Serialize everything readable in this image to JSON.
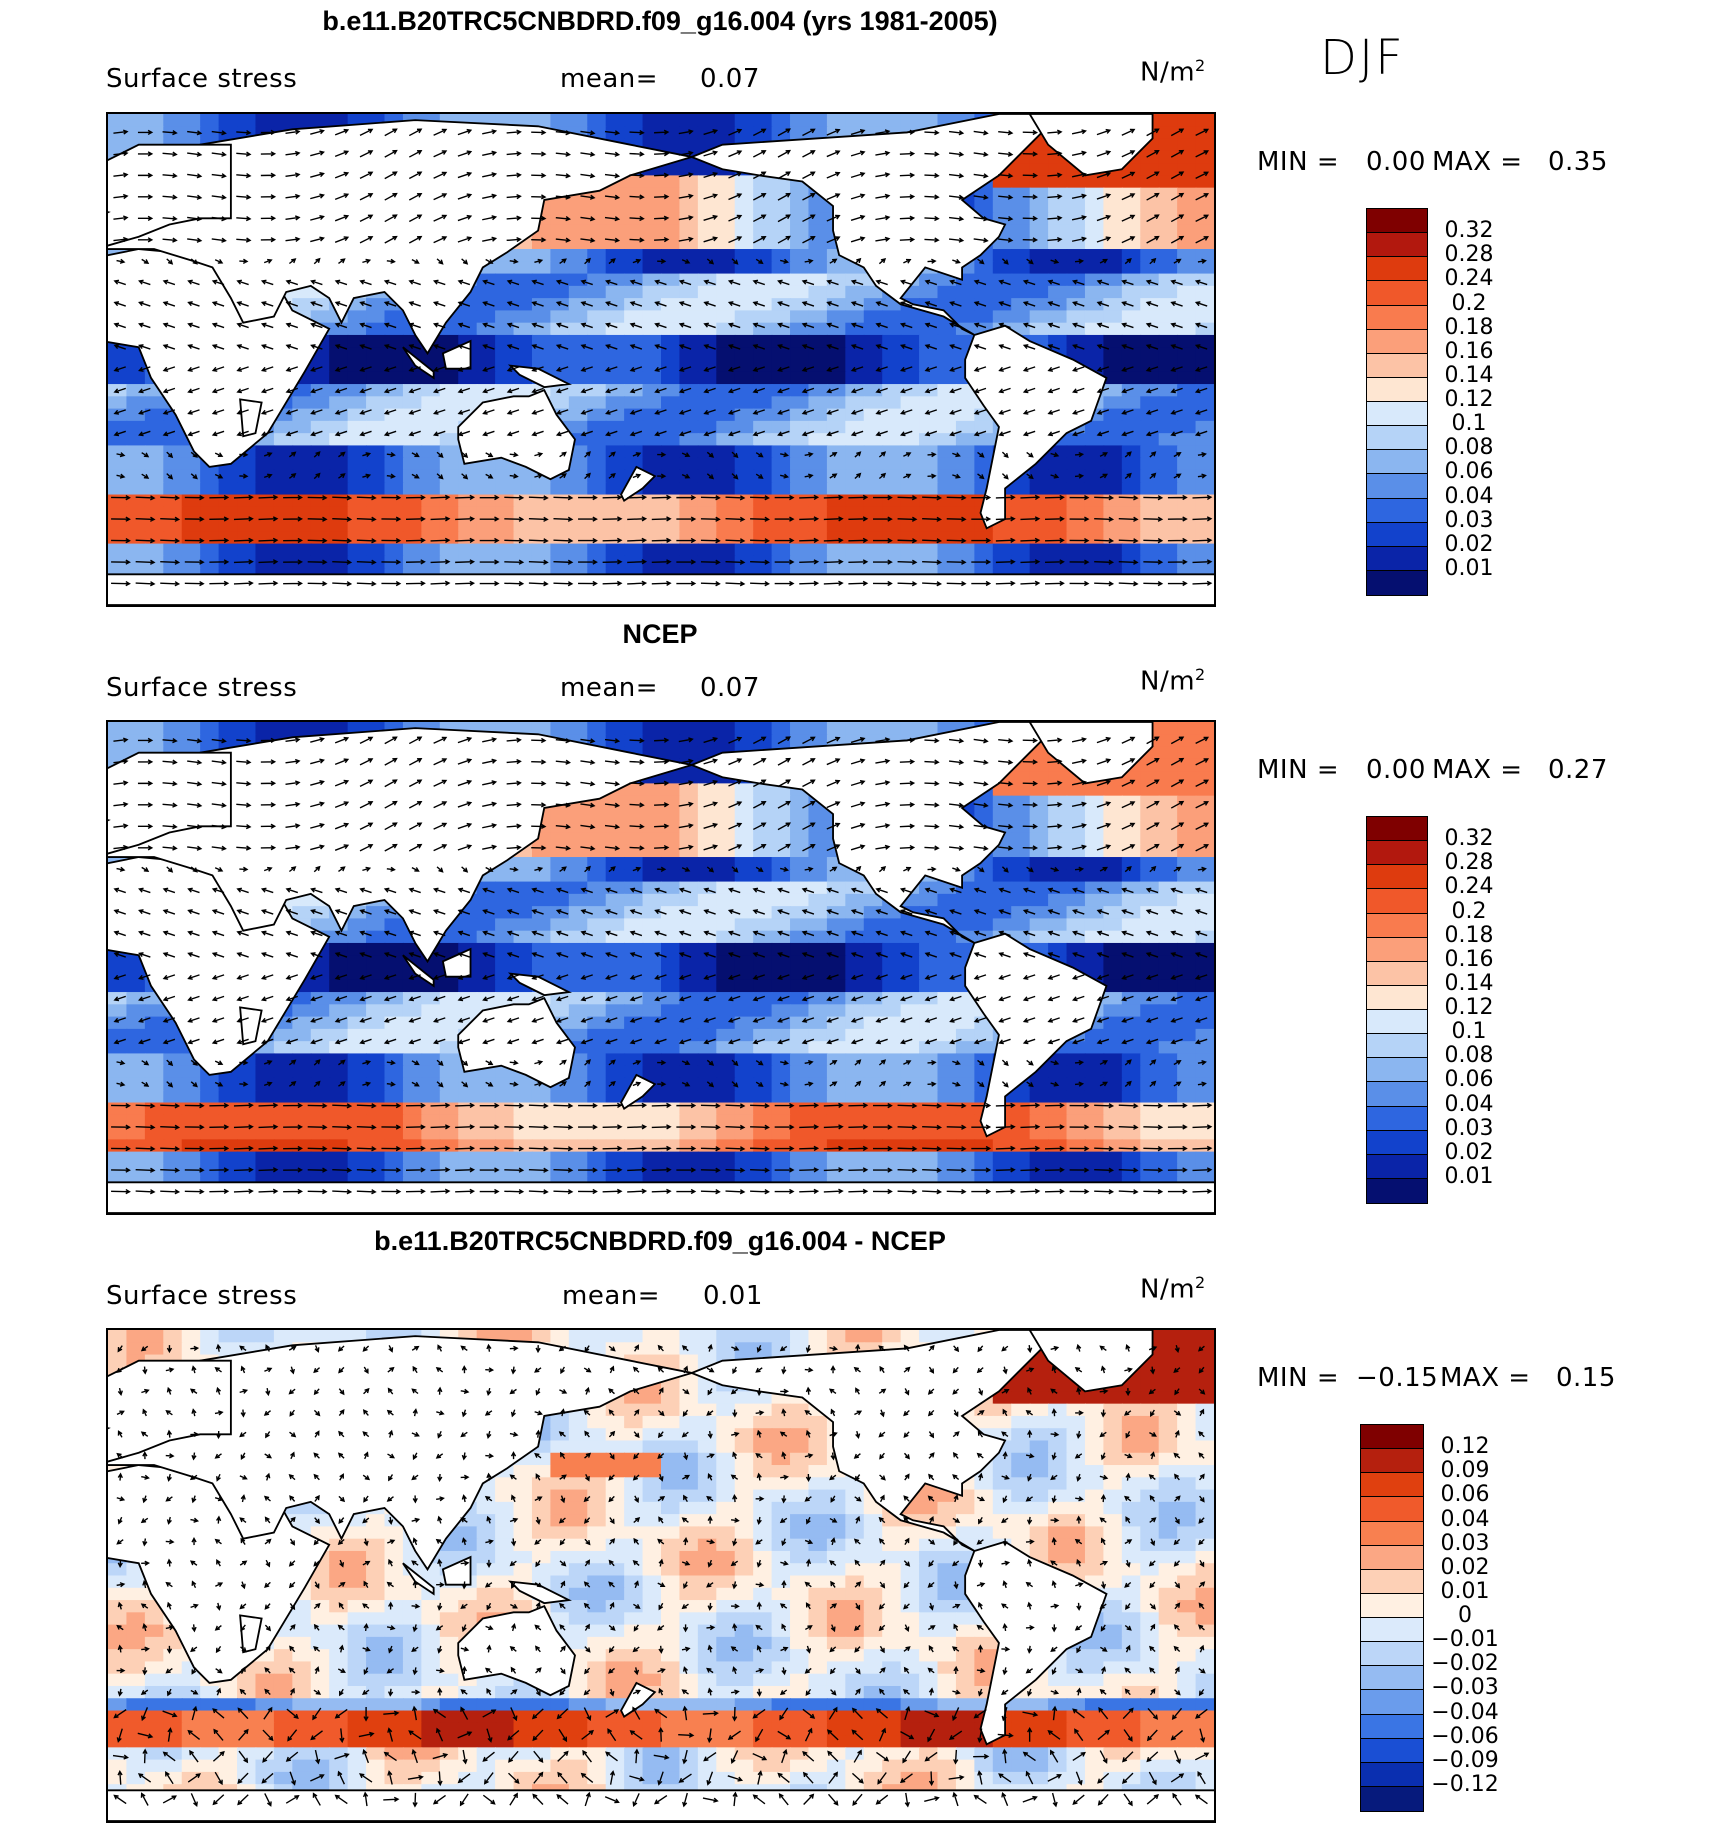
{
  "season": "DJF",
  "panels": [
    {
      "title": "b.e11.B20TRC5CNBDRD.f09_g16.004 (yrs 1981-2005)",
      "variable": "Surface stress",
      "mean_label": "mean=",
      "mean_value": "0.07",
      "units": "N/m",
      "units_sup": "2",
      "min_label": "MIN =",
      "min_value": "0.00",
      "max_label": "MAX =",
      "max_value": "0.35",
      "map_kind": "model",
      "colorbar_labels": [
        "0.32",
        "0.28",
        "0.24",
        "0.2",
        "0.18",
        "0.16",
        "0.14",
        "0.12",
        "0.1",
        "0.08",
        "0.06",
        "0.04",
        "0.03",
        "0.02",
        "0.01"
      ]
    },
    {
      "title": "NCEP",
      "variable": "Surface stress",
      "mean_label": "mean=",
      "mean_value": "0.07",
      "units": "N/m",
      "units_sup": "2",
      "min_label": "MIN =",
      "min_value": "0.00",
      "max_label": "MAX =",
      "max_value": "0.27",
      "map_kind": "obs",
      "colorbar_labels": [
        "0.32",
        "0.28",
        "0.24",
        "0.2",
        "0.18",
        "0.16",
        "0.14",
        "0.12",
        "0.1",
        "0.08",
        "0.06",
        "0.04",
        "0.03",
        "0.02",
        "0.01"
      ]
    },
    {
      "title": "b.e11.B20TRC5CNBDRD.f09_g16.004 - NCEP",
      "variable": "Surface stress",
      "mean_label": "mean=",
      "mean_value": "0.01",
      "units": "N/m",
      "units_sup": "2",
      "min_label": "MIN =",
      "min_value": "−0.15",
      "max_label": "MAX =",
      "max_value": "0.15",
      "map_kind": "diff",
      "colorbar_labels": [
        "0.12",
        "0.09",
        "0.06",
        "0.04",
        "0.03",
        "0.02",
        "0.01",
        "0",
        "−0.01",
        "−0.02",
        "−0.03",
        "−0.04",
        "−0.06",
        "−0.09",
        "−0.12"
      ]
    }
  ],
  "colors": {
    "seq": [
      "#7f0000",
      "#b2180e",
      "#de3b0e",
      "#f0582a",
      "#f97b4e",
      "#fb9f7a",
      "#fcc3a6",
      "#fee6d2",
      "#d8e9fb",
      "#b5d3f7",
      "#8bb6f0",
      "#5a8fe8",
      "#2e66e0",
      "#1242cc",
      "#0a24a8",
      "#050f70"
    ],
    "div": [
      "#7f0000",
      "#b5200e",
      "#e0400f",
      "#f05a2b",
      "#f88050",
      "#fba784",
      "#fdd0b6",
      "#fff0e2",
      "#dbeafb",
      "#bcd6f8",
      "#95bbf2",
      "#6a9cec",
      "#3a75e4",
      "#1a4fd4",
      "#0a2fb0",
      "#061a7c"
    ],
    "land": "#ffffff",
    "coast": "#000000",
    "arrow": "#000000"
  }
}
